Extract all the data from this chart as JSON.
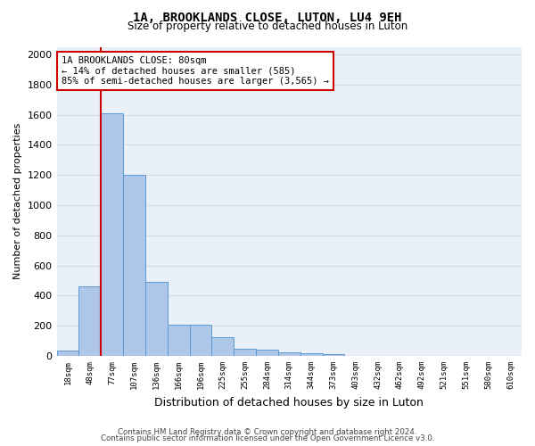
{
  "title_line1": "1A, BROOKLANDS CLOSE, LUTON, LU4 9EH",
  "title_line2": "Size of property relative to detached houses in Luton",
  "xlabel": "Distribution of detached houses by size in Luton",
  "ylabel": "Number of detached properties",
  "categories": [
    "18sqm",
    "48sqm",
    "77sqm",
    "107sqm",
    "136sqm",
    "166sqm",
    "196sqm",
    "225sqm",
    "255sqm",
    "284sqm",
    "314sqm",
    "344sqm",
    "373sqm",
    "403sqm",
    "432sqm",
    "462sqm",
    "492sqm",
    "521sqm",
    "551sqm",
    "580sqm",
    "610sqm"
  ],
  "values": [
    35,
    460,
    1610,
    1200,
    490,
    210,
    210,
    125,
    50,
    40,
    25,
    20,
    15,
    0,
    0,
    0,
    0,
    0,
    0,
    0,
    0
  ],
  "bar_color": "#aec6e8",
  "bar_edge_color": "#5b9bd5",
  "vline_color": "#cc0000",
  "annotation_line1": "1A BROOKLANDS CLOSE: 80sqm",
  "annotation_line2": "← 14% of detached houses are smaller (585)",
  "annotation_line3": "85% of semi-detached houses are larger (3,565) →",
  "annotation_box_color": "#ffffff",
  "annotation_box_edge": "#cc0000",
  "ylim": [
    0,
    2050
  ],
  "yticks": [
    0,
    200,
    400,
    600,
    800,
    1000,
    1200,
    1400,
    1600,
    1800,
    2000
  ],
  "grid_color": "#d4dce8",
  "background_color": "#eaf0f8",
  "footer_line1": "Contains HM Land Registry data © Crown copyright and database right 2024.",
  "footer_line2": "Contains public sector information licensed under the Open Government Licence v3.0."
}
